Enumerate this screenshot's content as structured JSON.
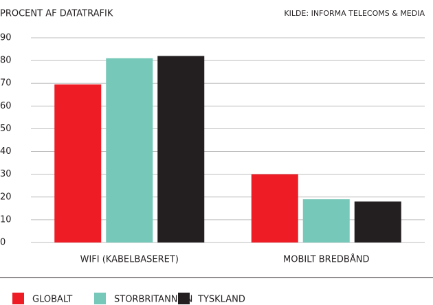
{
  "chart_data": {
    "type": "bar",
    "title": "PROCENT AF DATATRAFIK",
    "source": "KILDE: INFORMA TELECOMS & MEDIA",
    "categories": [
      "WIFI (KABELBASERET)",
      "MOBILT BREDBÅND"
    ],
    "series": [
      {
        "name": "GLOBALT",
        "color": "#ee1c25",
        "values": [
          69.5,
          30
        ]
      },
      {
        "name": "STORBRITANNIEN",
        "color": "#76c8b8",
        "values": [
          81,
          19
        ]
      },
      {
        "name": "TYSKLAND",
        "color": "#231f20",
        "values": [
          82,
          18
        ]
      }
    ],
    "ylim": [
      0,
      90
    ],
    "yticks": [
      0,
      10,
      20,
      30,
      40,
      50,
      60,
      70,
      80,
      90
    ],
    "grid": true
  }
}
